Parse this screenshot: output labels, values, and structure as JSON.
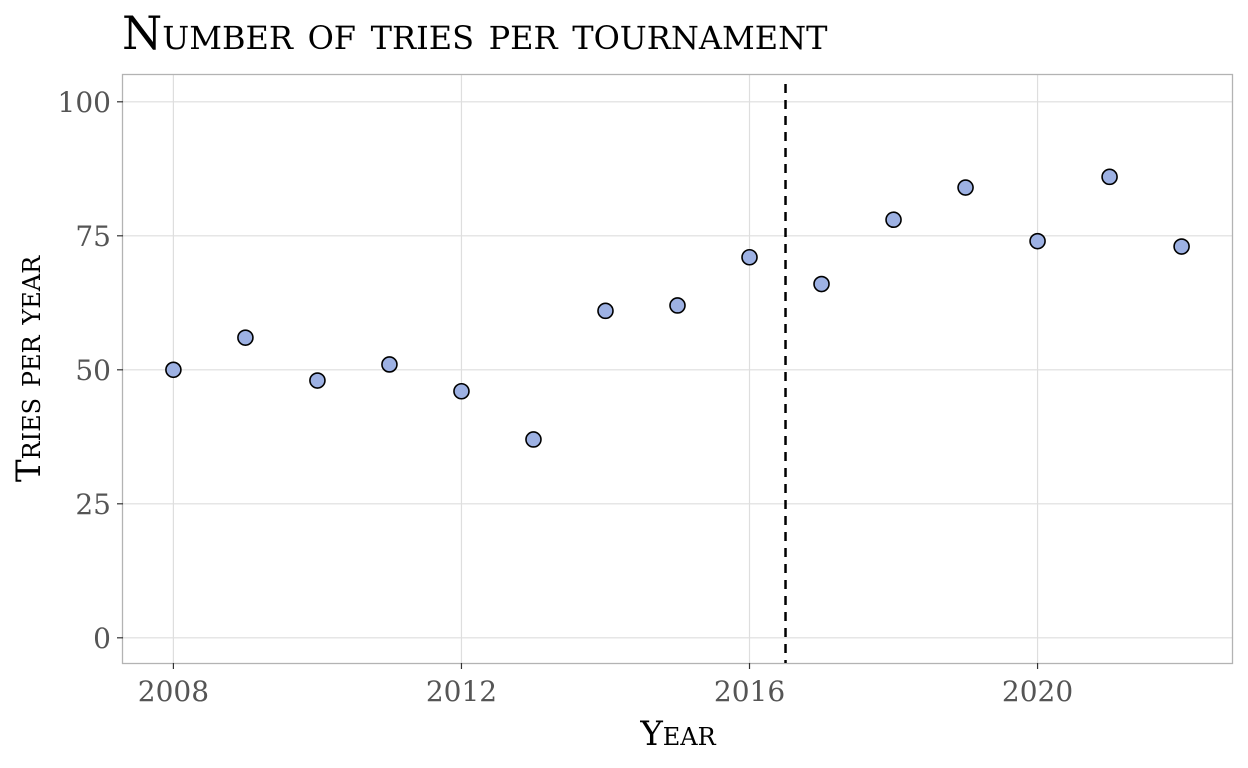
{
  "chart_data": {
    "type": "scatter",
    "title": "Number of tries per tournament",
    "xlabel": "Year",
    "ylabel": "Tries per year",
    "xlim": [
      2007.3,
      2022.7
    ],
    "ylim": [
      -4.7,
      105
    ],
    "x_ticks": [
      2008,
      2012,
      2016,
      2020
    ],
    "y_ticks": [
      0,
      25,
      50,
      75,
      100
    ],
    "grid": true,
    "point_color": "#9db1e3",
    "point_outline": "#000000",
    "reference_line": {
      "x": 2016.5,
      "style": "dashed",
      "color": "#000000"
    },
    "series": [
      {
        "x": [
          2008,
          2009,
          2010,
          2011,
          2012,
          2013,
          2014,
          2015,
          2016,
          2017,
          2018,
          2019,
          2020,
          2021,
          2022
        ],
        "y": [
          50,
          56,
          48,
          51,
          46,
          37,
          61,
          62,
          71,
          66,
          78,
          84,
          74,
          86,
          73
        ]
      }
    ]
  }
}
